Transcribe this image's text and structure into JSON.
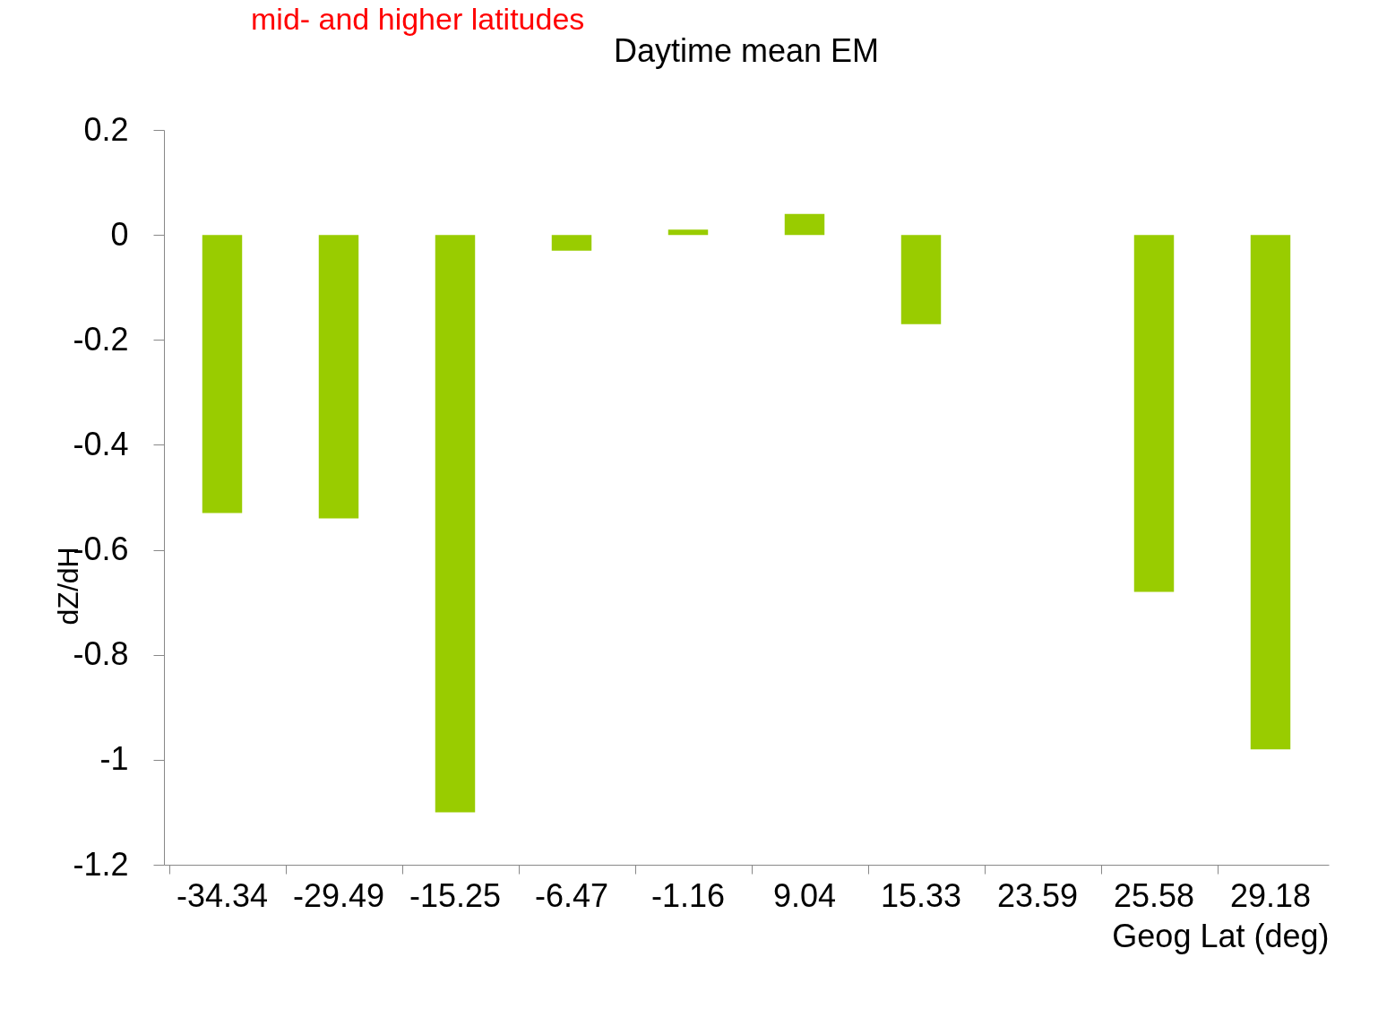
{
  "chart_data": {
    "type": "bar",
    "title": "Daytime mean EM",
    "xlabel": "Geog Lat (deg)",
    "ylabel": "dZ/dH",
    "annotations": [
      "mid- and higher latitudes"
    ],
    "categories": [
      "-34.34",
      "-29.49",
      "-15.25",
      "-6.47",
      "-1.16",
      "9.04",
      "15.33",
      "23.59",
      "25.58",
      "29.18"
    ],
    "values": [
      -0.53,
      -0.54,
      -1.1,
      -0.03,
      0.01,
      0.04,
      -0.17,
      0,
      -0.68,
      -0.98
    ],
    "color": "#99cc00",
    "ylim": [
      -1.2,
      0.2
    ],
    "yticks": [
      0.2,
      0,
      -0.2,
      -0.4,
      -0.6,
      -0.8,
      -1,
      -1.2
    ],
    "grid": false,
    "legend": false
  }
}
